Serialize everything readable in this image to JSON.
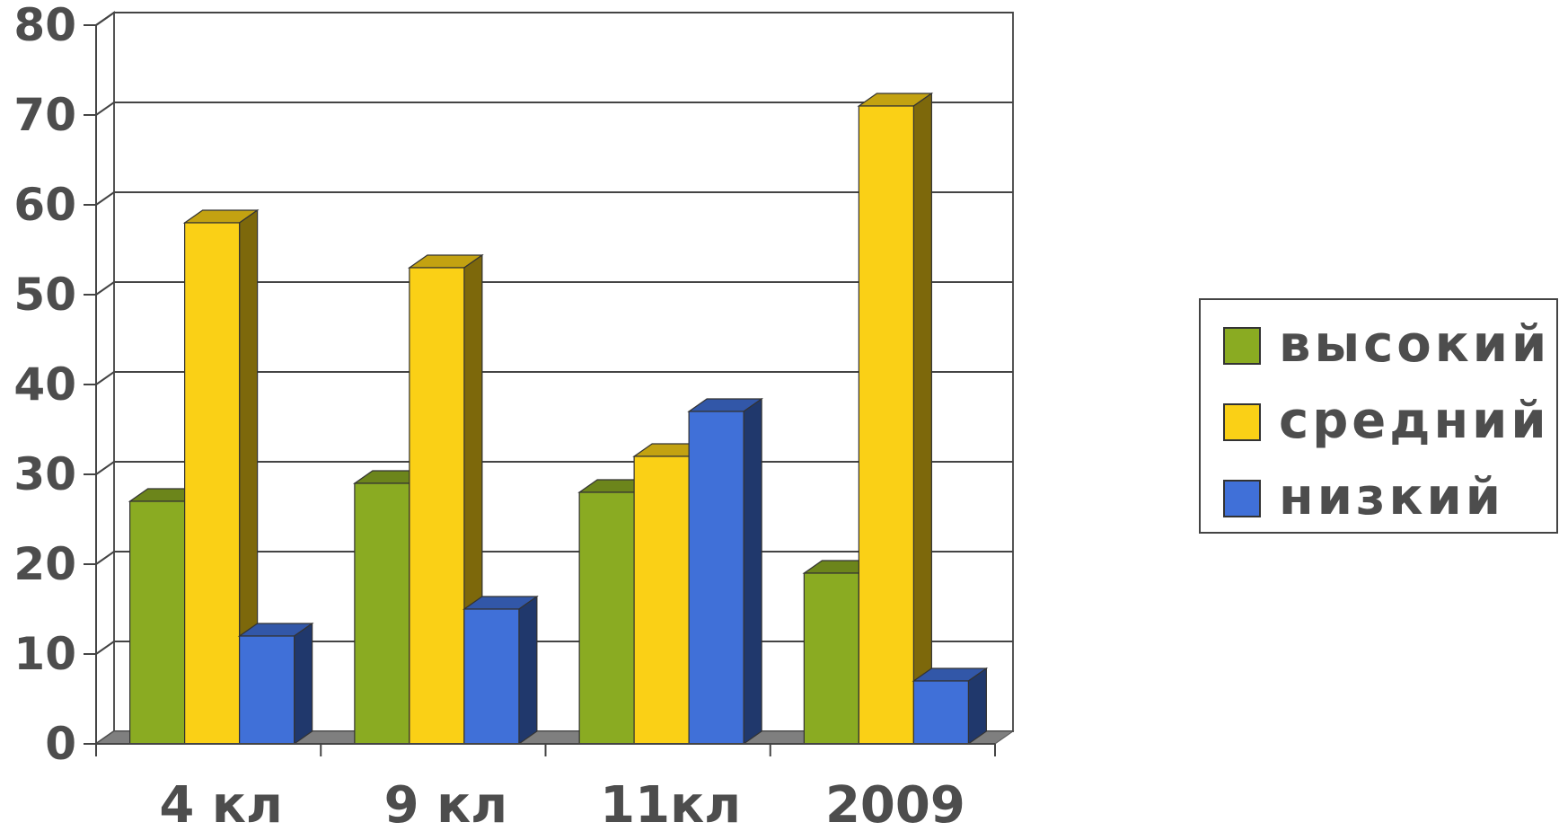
{
  "chart_data": {
    "type": "bar",
    "categories": [
      "4 кл",
      "9 кл",
      "11кл",
      "2009"
    ],
    "series": [
      {
        "name": "высокий",
        "values": [
          27,
          29,
          28,
          19
        ],
        "color": "#8aab22"
      },
      {
        "name": "средний",
        "values": [
          58,
          53,
          32,
          71
        ],
        "color": "#fad016"
      },
      {
        "name": "низкий",
        "values": [
          12,
          15,
          37,
          7
        ],
        "color": "#4070d8"
      }
    ],
    "ylim": [
      0,
      80
    ],
    "yticks": [
      "0",
      "10",
      "20",
      "30",
      "40",
      "50",
      "60",
      "70",
      "80"
    ],
    "grid": true,
    "legend": "right",
    "three_d": true
  }
}
